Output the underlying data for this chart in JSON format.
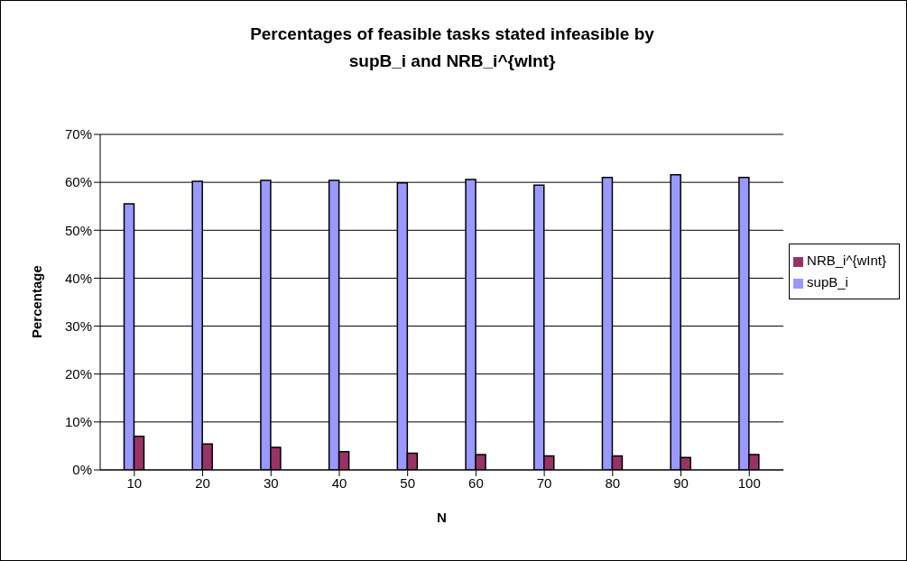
{
  "chart_data": {
    "type": "bar",
    "title": "Percentages of feasible tasks stated infeasible by supB_i and NRB_i^{wInt}",
    "xlabel": "N",
    "ylabel": "Percentage",
    "categories": [
      "10",
      "20",
      "30",
      "40",
      "50",
      "60",
      "70",
      "80",
      "90",
      "100"
    ],
    "series": [
      {
        "name": "supB_i",
        "color": "#9999ff",
        "values": [
          55.5,
          60.2,
          60.4,
          60.4,
          59.9,
          60.6,
          59.4,
          61.0,
          61.6,
          61.0
        ]
      },
      {
        "name": "NRB_i^{wInt}",
        "color": "#993366",
        "values": [
          7.0,
          5.4,
          4.7,
          3.8,
          3.5,
          3.2,
          2.9,
          2.9,
          2.6,
          3.2
        ]
      }
    ],
    "ylim": [
      0,
      70
    ],
    "yticks": [
      {
        "value": 0,
        "label": "0%"
      },
      {
        "value": 10,
        "label": "10%"
      },
      {
        "value": 20,
        "label": "20%"
      },
      {
        "value": 30,
        "label": "30%"
      },
      {
        "value": 40,
        "label": "40%"
      },
      {
        "value": 50,
        "label": "50%"
      },
      {
        "value": 60,
        "label": "60%"
      },
      {
        "value": 70,
        "label": "70%"
      }
    ],
    "grid": "y",
    "legend": "right"
  }
}
